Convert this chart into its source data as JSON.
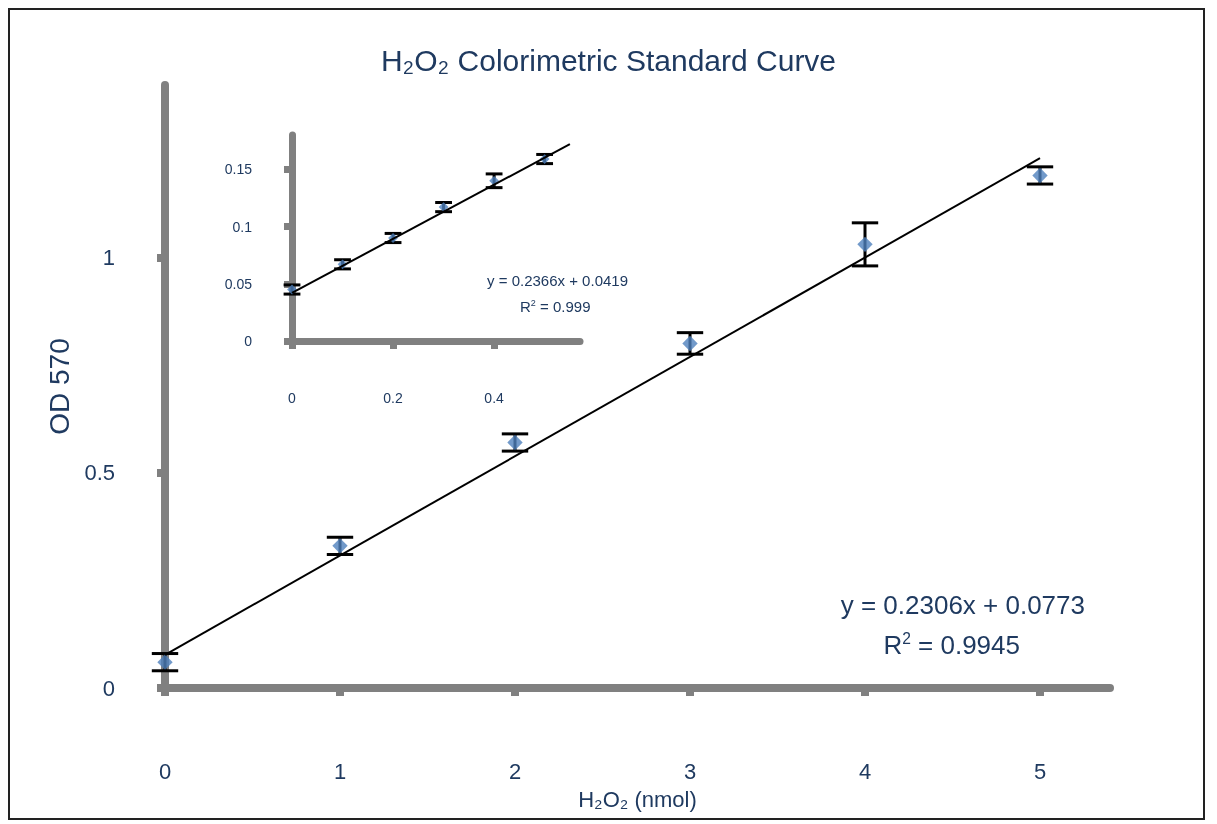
{
  "chart_data": [
    {
      "type": "scatter",
      "title": "H₂O₂ Colorimetric Standard Curve",
      "xlabel": "H₂O₂ (nmol)",
      "ylabel": "OD 570",
      "xlim": [
        0,
        5.4
      ],
      "xticks": [
        0,
        1,
        2,
        3,
        4,
        5
      ],
      "ylim": [
        0,
        1.4
      ],
      "yticks": [
        0,
        0.5,
        1
      ],
      "grid": false,
      "series": [
        {
          "type": "scatter",
          "color": "#4f81bd",
          "marker": "diamond",
          "x": [
            0,
            1,
            2,
            3,
            4,
            5
          ],
          "values": [
            0.06,
            0.33,
            0.57,
            0.8,
            1.03,
            1.19
          ],
          "errors": [
            0.02,
            0.02,
            0.02,
            0.025,
            0.05,
            0.02
          ]
        },
        {
          "type": "line",
          "color": "#000000",
          "marker": "none",
          "x": [
            0,
            5
          ],
          "values": [
            0.077,
            1.23
          ]
        }
      ],
      "annotations": [
        "y = 0.2306x + 0.0773",
        "R$^{2}$ = 0.9945"
      ]
    },
    {
      "type": "scatter",
      "xlim": [
        0,
        0.57
      ],
      "xticks": [
        0,
        0.2,
        0.4
      ],
      "ylim": [
        0,
        0.18
      ],
      "yticks": [
        0,
        0.05,
        0.1,
        0.15
      ],
      "grid": false,
      "series": [
        {
          "type": "scatter",
          "color": "#4f81bd",
          "marker": "diamond",
          "x": [
            0,
            0.1,
            0.2,
            0.3,
            0.4,
            0.5
          ],
          "values": [
            0.045,
            0.067,
            0.09,
            0.117,
            0.14,
            0.159
          ],
          "errors": [
            0.004,
            0.004,
            0.004,
            0.004,
            0.006,
            0.004
          ]
        },
        {
          "type": "line",
          "color": "#000000",
          "marker": "none",
          "x": [
            0,
            0.55
          ],
          "values": [
            0.042,
            0.172
          ]
        }
      ],
      "annotations": [
        "y = 0.2366x + 0.0419",
        "R$^{2}$ = 0.999"
      ]
    }
  ]
}
